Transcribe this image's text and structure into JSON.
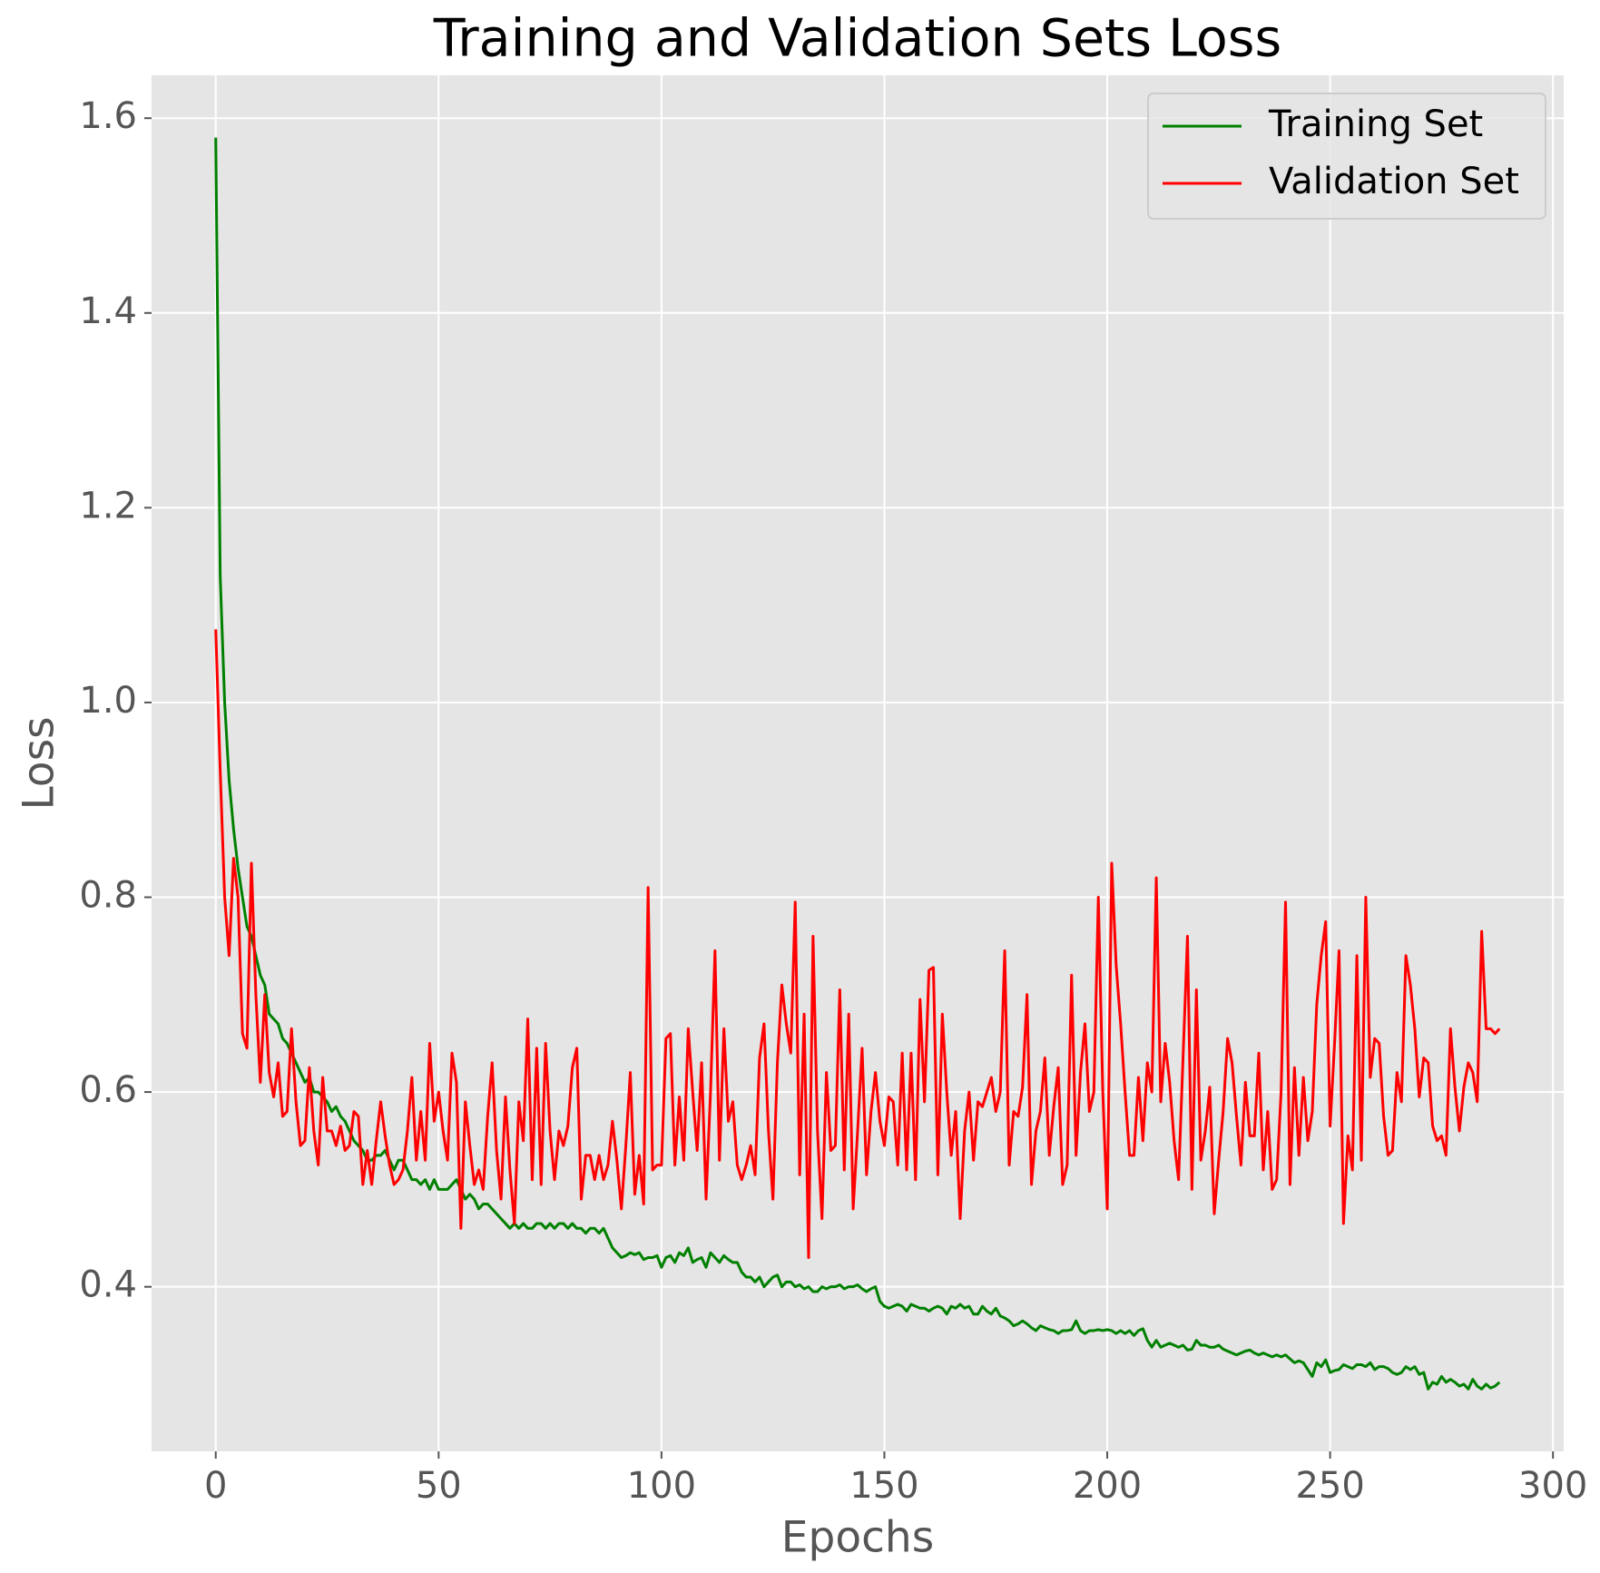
{
  "chart_data": {
    "type": "line",
    "title": "Training and Validation Sets Loss",
    "x_label": "Epochs",
    "y_label": "Loss",
    "xlim": [
      -14.4,
      302.4
    ],
    "ylim": [
      0.231,
      1.644
    ],
    "xticks": [
      0,
      50,
      100,
      150,
      200,
      250,
      300
    ],
    "yticks": [
      {
        "value": 0.4,
        "label": "0.4"
      },
      {
        "value": 0.6,
        "label": "0.6"
      },
      {
        "value": 0.8,
        "label": "0.8"
      },
      {
        "value": 1.0,
        "label": "1.0"
      },
      {
        "value": 1.2,
        "label": "1.2"
      },
      {
        "value": 1.4,
        "label": "1.4"
      },
      {
        "value": 1.6,
        "label": "1.6"
      }
    ],
    "grid": true,
    "legend": "upper right",
    "x": [
      0,
      1,
      2,
      3,
      4,
      5,
      6,
      7,
      8,
      9,
      10,
      11,
      12,
      13,
      14,
      15,
      16,
      17,
      18,
      19,
      20,
      21,
      22,
      23,
      24,
      25,
      26,
      27,
      28,
      29,
      30,
      31,
      32,
      33,
      34,
      35,
      36,
      37,
      38,
      39,
      40,
      41,
      42,
      43,
      44,
      45,
      46,
      47,
      48,
      49,
      50,
      51,
      52,
      53,
      54,
      55,
      56,
      57,
      58,
      59,
      60,
      61,
      62,
      63,
      64,
      65,
      66,
      67,
      68,
      69,
      70,
      71,
      72,
      73,
      74,
      75,
      76,
      77,
      78,
      79,
      80,
      81,
      82,
      83,
      84,
      85,
      86,
      87,
      88,
      89,
      90,
      91,
      92,
      93,
      94,
      95,
      96,
      97,
      98,
      99,
      100,
      101,
      102,
      103,
      104,
      105,
      106,
      107,
      108,
      109,
      110,
      111,
      112,
      113,
      114,
      115,
      116,
      117,
      118,
      119,
      120,
      121,
      122,
      123,
      124,
      125,
      126,
      127,
      128,
      129,
      130,
      131,
      132,
      133,
      134,
      135,
      136,
      137,
      138,
      139,
      140,
      141,
      142,
      143,
      144,
      145,
      146,
      147,
      148,
      149,
      150,
      151,
      152,
      153,
      154,
      155,
      156,
      157,
      158,
      159,
      160,
      161,
      162,
      163,
      164,
      165,
      166,
      167,
      168,
      169,
      170,
      171,
      172,
      173,
      174,
      175,
      176,
      177,
      178,
      179,
      180,
      181,
      182,
      183,
      184,
      185,
      186,
      187,
      188,
      189,
      190,
      191,
      192,
      193,
      194,
      195,
      196,
      197,
      198,
      199,
      200,
      201,
      202,
      203,
      204,
      205,
      206,
      207,
      208,
      209,
      210,
      211,
      212,
      213,
      214,
      215,
      216,
      217,
      218,
      219,
      220,
      221,
      222,
      223,
      224,
      225,
      226,
      227,
      228,
      229,
      230,
      231,
      232,
      233,
      234,
      235,
      236,
      237,
      238,
      239,
      240,
      241,
      242,
      243,
      244,
      245,
      246,
      247,
      248,
      249,
      250,
      251,
      252,
      253,
      254,
      255,
      256,
      257,
      258,
      259,
      260,
      261,
      262,
      263,
      264,
      265,
      266,
      267,
      268,
      269,
      270,
      271,
      272,
      273,
      274,
      275,
      276,
      277,
      278,
      279,
      280,
      281,
      282,
      283,
      284,
      285,
      286,
      287,
      288
    ],
    "series": [
      {
        "name": "Training Set",
        "color": "#008000",
        "values": [
          1.58,
          1.13,
          1.0,
          0.92,
          0.87,
          0.83,
          0.8,
          0.77,
          0.76,
          0.74,
          0.72,
          0.71,
          0.68,
          0.675,
          0.67,
          0.655,
          0.65,
          0.64,
          0.63,
          0.62,
          0.61,
          0.615,
          0.6,
          0.6,
          0.595,
          0.59,
          0.58,
          0.585,
          0.575,
          0.57,
          0.56,
          0.55,
          0.545,
          0.54,
          0.53,
          0.53,
          0.535,
          0.535,
          0.54,
          0.53,
          0.52,
          0.53,
          0.53,
          0.52,
          0.51,
          0.51,
          0.505,
          0.51,
          0.5,
          0.51,
          0.5,
          0.5,
          0.5,
          0.505,
          0.51,
          0.5,
          0.49,
          0.495,
          0.49,
          0.48,
          0.485,
          0.485,
          0.48,
          0.475,
          0.47,
          0.465,
          0.46,
          0.465,
          0.46,
          0.465,
          0.46,
          0.46,
          0.465,
          0.465,
          0.46,
          0.465,
          0.46,
          0.465,
          0.465,
          0.46,
          0.465,
          0.46,
          0.46,
          0.455,
          0.46,
          0.46,
          0.455,
          0.46,
          0.45,
          0.44,
          0.435,
          0.43,
          0.432,
          0.435,
          0.433,
          0.435,
          0.428,
          0.43,
          0.43,
          0.432,
          0.42,
          0.43,
          0.432,
          0.425,
          0.435,
          0.432,
          0.44,
          0.425,
          0.428,
          0.43,
          0.42,
          0.435,
          0.43,
          0.425,
          0.432,
          0.428,
          0.425,
          0.425,
          0.415,
          0.41,
          0.41,
          0.405,
          0.41,
          0.4,
          0.405,
          0.41,
          0.412,
          0.4,
          0.405,
          0.405,
          0.4,
          0.402,
          0.398,
          0.4,
          0.395,
          0.395,
          0.4,
          0.398,
          0.4,
          0.4,
          0.402,
          0.398,
          0.4,
          0.4,
          0.402,
          0.398,
          0.395,
          0.398,
          0.4,
          0.385,
          0.38,
          0.378,
          0.38,
          0.382,
          0.38,
          0.375,
          0.382,
          0.38,
          0.378,
          0.378,
          0.375,
          0.378,
          0.38,
          0.378,
          0.372,
          0.38,
          0.378,
          0.382,
          0.378,
          0.38,
          0.372,
          0.372,
          0.38,
          0.375,
          0.372,
          0.378,
          0.37,
          0.368,
          0.365,
          0.36,
          0.362,
          0.365,
          0.362,
          0.358,
          0.355,
          0.36,
          0.358,
          0.356,
          0.355,
          0.352,
          0.355,
          0.355,
          0.356,
          0.365,
          0.355,
          0.352,
          0.355,
          0.355,
          0.356,
          0.355,
          0.356,
          0.355,
          0.352,
          0.355,
          0.352,
          0.355,
          0.35,
          0.355,
          0.357,
          0.345,
          0.338,
          0.345,
          0.338,
          0.34,
          0.342,
          0.34,
          0.338,
          0.34,
          0.335,
          0.336,
          0.345,
          0.34,
          0.34,
          0.338,
          0.338,
          0.34,
          0.336,
          0.334,
          0.332,
          0.33,
          0.332,
          0.334,
          0.335,
          0.332,
          0.33,
          0.332,
          0.33,
          0.328,
          0.33,
          0.328,
          0.33,
          0.326,
          0.322,
          0.324,
          0.322,
          0.315,
          0.308,
          0.322,
          0.318,
          0.325,
          0.312,
          0.314,
          0.315,
          0.32,
          0.318,
          0.316,
          0.32,
          0.32,
          0.318,
          0.322,
          0.315,
          0.318,
          0.318,
          0.316,
          0.312,
          0.31,
          0.312,
          0.318,
          0.315,
          0.318,
          0.31,
          0.312,
          0.295,
          0.302,
          0.3,
          0.308,
          0.302,
          0.305,
          0.302,
          0.298,
          0.3,
          0.295,
          0.305,
          0.298,
          0.295,
          0.3,
          0.296,
          0.298,
          0.302
        ]
      },
      {
        "name": "Validation Set",
        "color": "#ff0000",
        "values": [
          1.075,
          0.93,
          0.8,
          0.74,
          0.84,
          0.8,
          0.66,
          0.645,
          0.835,
          0.7,
          0.61,
          0.7,
          0.62,
          0.595,
          0.63,
          0.575,
          0.58,
          0.665,
          0.59,
          0.545,
          0.55,
          0.625,
          0.56,
          0.525,
          0.615,
          0.56,
          0.56,
          0.545,
          0.565,
          0.54,
          0.545,
          0.58,
          0.575,
          0.505,
          0.54,
          0.505,
          0.55,
          0.59,
          0.555,
          0.525,
          0.505,
          0.51,
          0.52,
          0.56,
          0.615,
          0.53,
          0.58,
          0.53,
          0.65,
          0.57,
          0.6,
          0.56,
          0.53,
          0.64,
          0.61,
          0.46,
          0.59,
          0.545,
          0.505,
          0.52,
          0.5,
          0.575,
          0.63,
          0.54,
          0.49,
          0.595,
          0.52,
          0.465,
          0.59,
          0.55,
          0.675,
          0.51,
          0.645,
          0.505,
          0.65,
          0.56,
          0.51,
          0.56,
          0.545,
          0.565,
          0.625,
          0.645,
          0.49,
          0.535,
          0.535,
          0.51,
          0.535,
          0.51,
          0.525,
          0.57,
          0.53,
          0.48,
          0.545,
          0.62,
          0.495,
          0.535,
          0.485,
          0.81,
          0.52,
          0.525,
          0.525,
          0.655,
          0.66,
          0.525,
          0.595,
          0.53,
          0.665,
          0.6,
          0.54,
          0.63,
          0.49,
          0.6,
          0.745,
          0.53,
          0.665,
          0.57,
          0.59,
          0.525,
          0.51,
          0.525,
          0.545,
          0.515,
          0.635,
          0.67,
          0.56,
          0.49,
          0.63,
          0.71,
          0.67,
          0.64,
          0.795,
          0.515,
          0.68,
          0.43,
          0.76,
          0.56,
          0.47,
          0.62,
          0.54,
          0.545,
          0.705,
          0.52,
          0.68,
          0.48,
          0.56,
          0.645,
          0.515,
          0.58,
          0.62,
          0.57,
          0.545,
          0.595,
          0.59,
          0.525,
          0.64,
          0.52,
          0.64,
          0.51,
          0.695,
          0.59,
          0.725,
          0.728,
          0.515,
          0.68,
          0.6,
          0.535,
          0.58,
          0.47,
          0.56,
          0.6,
          0.53,
          0.59,
          0.585,
          0.6,
          0.615,
          0.58,
          0.6,
          0.745,
          0.525,
          0.58,
          0.575,
          0.605,
          0.7,
          0.505,
          0.56,
          0.58,
          0.635,
          0.535,
          0.585,
          0.625,
          0.505,
          0.525,
          0.72,
          0.535,
          0.62,
          0.67,
          0.58,
          0.6,
          0.8,
          0.6,
          0.48,
          0.835,
          0.73,
          0.67,
          0.6,
          0.535,
          0.535,
          0.615,
          0.55,
          0.63,
          0.6,
          0.82,
          0.59,
          0.65,
          0.61,
          0.55,
          0.51,
          0.635,
          0.76,
          0.5,
          0.705,
          0.53,
          0.56,
          0.605,
          0.475,
          0.53,
          0.58,
          0.655,
          0.63,
          0.575,
          0.525,
          0.61,
          0.555,
          0.555,
          0.64,
          0.52,
          0.58,
          0.5,
          0.51,
          0.6,
          0.795,
          0.505,
          0.625,
          0.535,
          0.615,
          0.55,
          0.58,
          0.69,
          0.74,
          0.775,
          0.565,
          0.65,
          0.745,
          0.465,
          0.555,
          0.52,
          0.74,
          0.53,
          0.8,
          0.615,
          0.655,
          0.65,
          0.575,
          0.535,
          0.54,
          0.62,
          0.59,
          0.74,
          0.71,
          0.665,
          0.595,
          0.635,
          0.63,
          0.565,
          0.55,
          0.555,
          0.535,
          0.665,
          0.605,
          0.56,
          0.605,
          0.63,
          0.62,
          0.59,
          0.765,
          0.665,
          0.665,
          0.66,
          0.665
        ]
      }
    ]
  }
}
